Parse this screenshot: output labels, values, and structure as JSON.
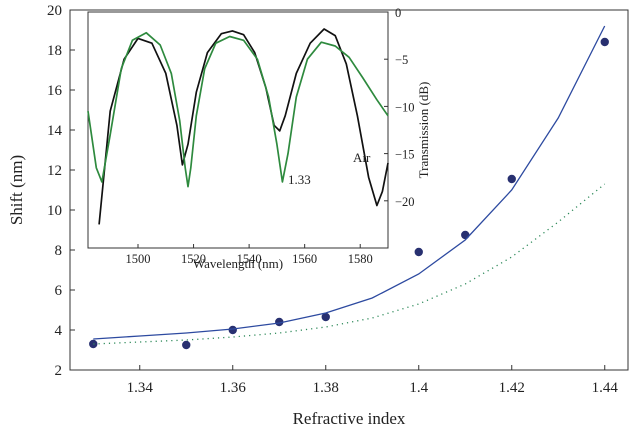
{
  "chart_data": [
    {
      "type": "scatter",
      "xlabel": "Refractive index",
      "ylabel": "Shift (nm)",
      "xlim": [
        1.325,
        1.445
      ],
      "ylim": [
        2,
        20
      ],
      "x_ticks": [
        "1.34",
        "1.36",
        "1.38",
        "1.4",
        "1.42",
        "1.44"
      ],
      "y_ticks": [
        "2",
        "4",
        "6",
        "8",
        "10",
        "12",
        "14",
        "16",
        "18",
        "20"
      ],
      "colors": {
        "points": "#283070",
        "fit": "#2d4aa0",
        "dotted": "#2e8a5a",
        "frame": "#333333"
      },
      "series": [
        {
          "style": "markers",
          "x": [
            1.33,
            1.35,
            1.36,
            1.37,
            1.38,
            1.4,
            1.41,
            1.42,
            1.44
          ],
          "y": [
            3.3,
            3.25,
            4.0,
            4.4,
            4.65,
            7.9,
            8.75,
            11.55,
            18.4
          ]
        },
        {
          "style": "solid-line",
          "x": [
            1.33,
            1.34,
            1.35,
            1.36,
            1.37,
            1.38,
            1.39,
            1.4,
            1.41,
            1.42,
            1.43,
            1.44
          ],
          "y": [
            3.55,
            3.7,
            3.85,
            4.05,
            4.35,
            4.85,
            5.6,
            6.8,
            8.5,
            11.0,
            14.6,
            19.2
          ]
        },
        {
          "style": "dotted-line",
          "x": [
            1.33,
            1.34,
            1.35,
            1.36,
            1.37,
            1.38,
            1.39,
            1.4,
            1.41,
            1.42,
            1.43,
            1.44
          ],
          "y": [
            3.3,
            3.4,
            3.5,
            3.65,
            3.85,
            4.15,
            4.6,
            5.3,
            6.3,
            7.65,
            9.4,
            11.3
          ]
        }
      ]
    },
    {
      "type": "line",
      "xlabel": "Wavelength (nm)",
      "ylabel": "Transmission (dB)",
      "xlim": [
        1482,
        1590
      ],
      "ylim": [
        -25,
        0
      ],
      "x_ticks": [
        "1500",
        "1520",
        "1540",
        "1560",
        "1580"
      ],
      "y_ticks": [
        "0",
        "−5",
        "−10",
        "−15",
        "−20"
      ],
      "colors": {
        "air": "#111111",
        "n133": "#2e8a3e"
      },
      "annotations": [
        "Air",
        "1.33"
      ],
      "series": [
        {
          "color": "#111111",
          "x": [
            1486,
            1490,
            1495,
            1500,
            1505,
            1510,
            1514,
            1516,
            1518,
            1521,
            1525,
            1530,
            1534,
            1538,
            1542,
            1546,
            1549,
            1551,
            1553,
            1557,
            1562,
            1567,
            1571,
            1575,
            1579,
            1583,
            1586,
            1588,
            1590
          ],
          "y": [
            -22.5,
            -10.5,
            -5.0,
            -2.8,
            -3.3,
            -6.5,
            -12.0,
            -16.2,
            -14.0,
            -8.5,
            -4.3,
            -2.3,
            -2.0,
            -2.4,
            -4.3,
            -8.0,
            -12.0,
            -12.6,
            -11.0,
            -6.5,
            -3.3,
            -1.8,
            -2.5,
            -5.5,
            -11.0,
            -17.5,
            -20.5,
            -19.0,
            -16.0
          ]
        },
        {
          "color": "#2e8a3e",
          "x": [
            1482,
            1485,
            1487,
            1490,
            1494,
            1498,
            1503,
            1508,
            1512,
            1515,
            1517,
            1518,
            1519,
            1521,
            1524,
            1528,
            1533,
            1538,
            1543,
            1547,
            1550,
            1552,
            1554,
            1557,
            1561,
            1566,
            1571,
            1576,
            1581,
            1586,
            1590
          ],
          "y": [
            -10.5,
            -16.5,
            -18.0,
            -13.0,
            -6.0,
            -3.0,
            -2.2,
            -3.5,
            -6.5,
            -11.5,
            -16.5,
            -18.5,
            -16.5,
            -11.0,
            -6.0,
            -3.3,
            -2.6,
            -3.0,
            -5.0,
            -9.0,
            -14.0,
            -18.0,
            -15.0,
            -9.0,
            -5.0,
            -3.2,
            -3.6,
            -4.8,
            -7.0,
            -9.3,
            -11.0
          ]
        }
      ]
    }
  ]
}
